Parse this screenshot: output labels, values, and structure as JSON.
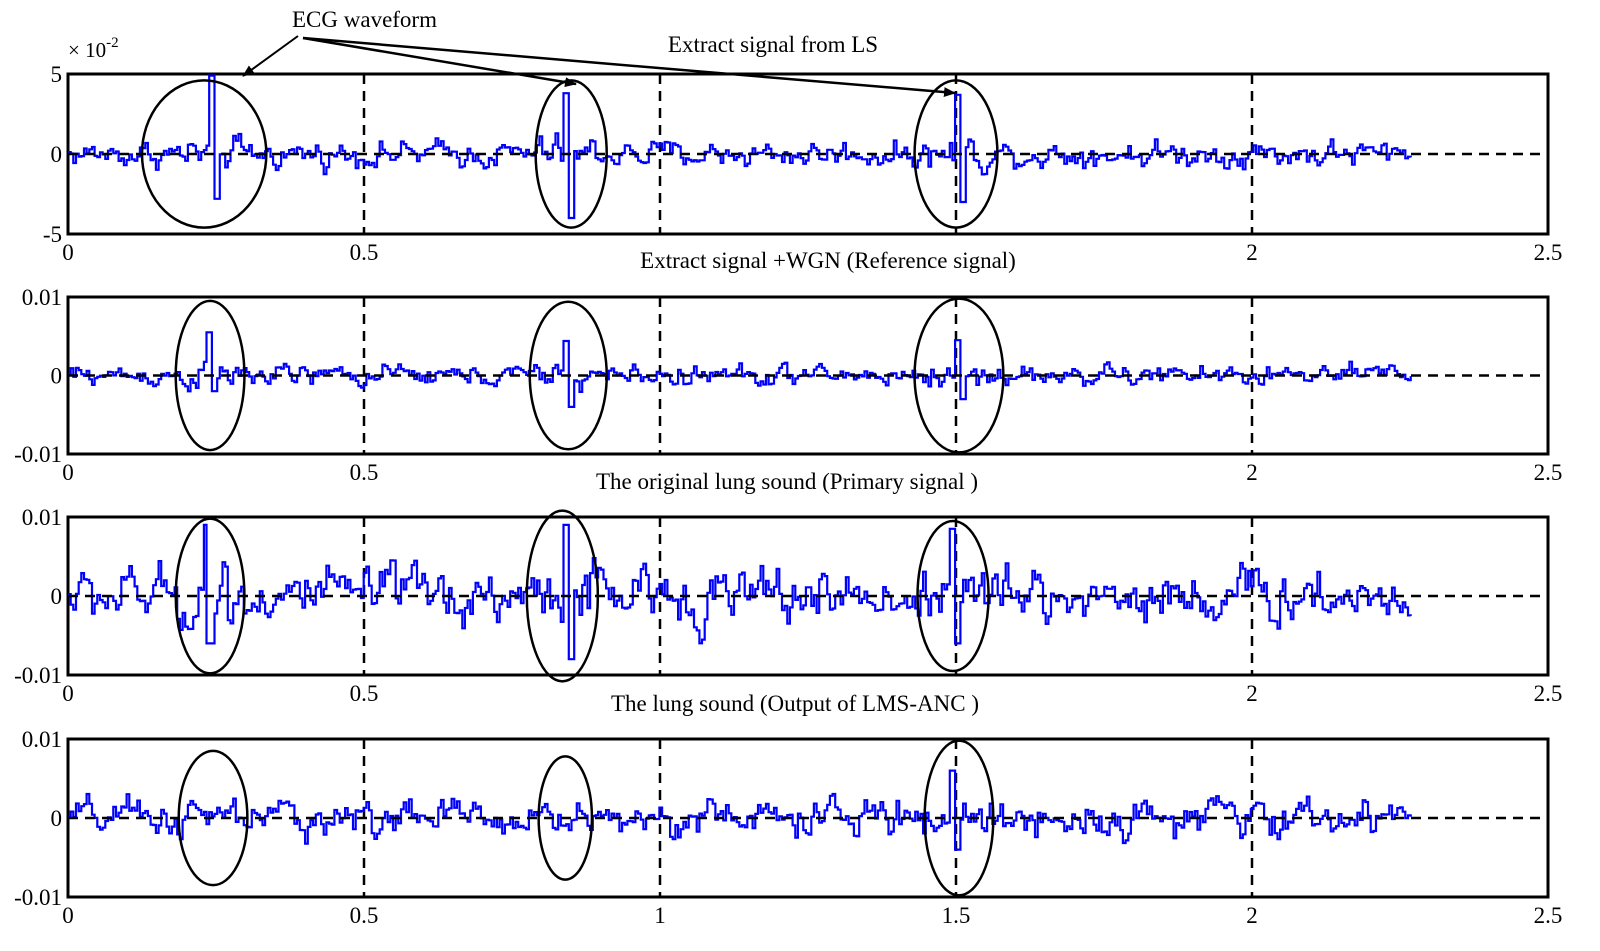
{
  "annotations": {
    "ecg_waveform": "ECG waveform",
    "scale_multiplier": "× 10",
    "scale_exponent": "-2"
  },
  "colors": {
    "signal": "#0000ff",
    "axis": "#000000",
    "grid": "#000000",
    "background": "#ffffff"
  },
  "chart_data": [
    {
      "type": "line",
      "title": "Extract signal from LS",
      "xlim": [
        0,
        2.5
      ],
      "ylim": [
        -5,
        5
      ],
      "x_ticks": [
        "0",
        "0.5",
        "2",
        "2.5"
      ],
      "y_ticks": [
        "5",
        "0",
        "-5"
      ],
      "y_scale_label": "× 10^-2",
      "dashed_gridlines_x": [
        0.5,
        1,
        1.5,
        2
      ],
      "x_end": 2.27,
      "amplitude": 1.0,
      "ellipses": [
        {
          "cx": 0.23,
          "cy": 0,
          "rx": 0.105,
          "ry": 4.6
        },
        {
          "cx": 0.85,
          "cy": 0,
          "rx": 0.06,
          "ry": 4.6
        },
        {
          "cx": 1.5,
          "cy": 0,
          "rx": 0.07,
          "ry": 4.6
        }
      ],
      "spikes": [
        {
          "x": 0.24,
          "up": 5.0,
          "down": -2.8
        },
        {
          "x": 0.84,
          "up": 3.8,
          "down": -4.0
        },
        {
          "x": 1.5,
          "up": 3.7,
          "down": -3.0
        }
      ]
    },
    {
      "type": "line",
      "title": "Extract signal +WGN (Reference signal)",
      "xlim": [
        0,
        2.5
      ],
      "ylim": [
        -0.01,
        0.01
      ],
      "x_ticks": [
        "0",
        "0.5",
        "2",
        "2.5"
      ],
      "y_ticks": [
        "0.01",
        "0",
        "-0.01"
      ],
      "dashed_gridlines_x": [
        0.5,
        1,
        1.5,
        2
      ],
      "x_end": 2.27,
      "amplitude": 0.0016,
      "ellipses": [
        {
          "cx": 0.24,
          "cy": 0,
          "rx": 0.058,
          "ry": 0.0095
        },
        {
          "cx": 0.845,
          "cy": 0,
          "rx": 0.065,
          "ry": 0.0094
        },
        {
          "cx": 1.505,
          "cy": 0,
          "rx": 0.075,
          "ry": 0.0098
        }
      ],
      "spikes": [
        {
          "x": 0.235,
          "up": 0.0055,
          "down": -0.002
        },
        {
          "x": 0.84,
          "up": 0.0044,
          "down": -0.004
        },
        {
          "x": 1.5,
          "up": 0.0045,
          "down": -0.003
        }
      ]
    },
    {
      "type": "line",
      "title": "The original lung sound (Primary signal )",
      "xlim": [
        0,
        2.5
      ],
      "ylim": [
        -0.01,
        0.01
      ],
      "x_ticks": [
        "0",
        "0.5",
        "2",
        "2.5"
      ],
      "y_ticks": [
        "0.01",
        "0",
        "-0.01"
      ],
      "dashed_gridlines_x": [
        0.5,
        1,
        1.5,
        2
      ],
      "x_end": 2.27,
      "amplitude": 0.0042,
      "ellipses": [
        {
          "cx": 0.24,
          "cy": 0,
          "rx": 0.058,
          "ry": 0.0098
        },
        {
          "cx": 0.835,
          "cy": 0,
          "rx": 0.06,
          "ry": 0.0108
        },
        {
          "cx": 1.495,
          "cy": 0,
          "rx": 0.06,
          "ry": 0.0095
        }
      ],
      "spikes": [
        {
          "x": 0.23,
          "up": 0.009,
          "down": -0.006
        },
        {
          "x": 0.84,
          "up": 0.009,
          "down": -0.008
        },
        {
          "x": 1.49,
          "up": 0.0085,
          "down": -0.006
        }
      ]
    },
    {
      "type": "line",
      "title": "The lung sound (Output of LMS-ANC )",
      "xlim": [
        0,
        2.5
      ],
      "ylim": [
        -0.01,
        0.01
      ],
      "x_ticks": [
        "0",
        "0.5",
        "1",
        "1.5",
        "2",
        "2.5"
      ],
      "y_ticks": [
        "0.01",
        "0",
        "-0.01"
      ],
      "dashed_gridlines_x": [
        0.5,
        1,
        1.5,
        2
      ],
      "x_end": 2.27,
      "amplitude": 0.0028,
      "ellipses": [
        {
          "cx": 0.245,
          "cy": 0,
          "rx": 0.058,
          "ry": 0.0085
        },
        {
          "cx": 0.84,
          "cy": 0,
          "rx": 0.045,
          "ry": 0.0078
        },
        {
          "cx": 1.505,
          "cy": 0,
          "rx": 0.058,
          "ry": 0.0098
        }
      ],
      "spikes": [
        {
          "x": 1.49,
          "up": 0.006,
          "down": -0.004
        }
      ]
    }
  ]
}
